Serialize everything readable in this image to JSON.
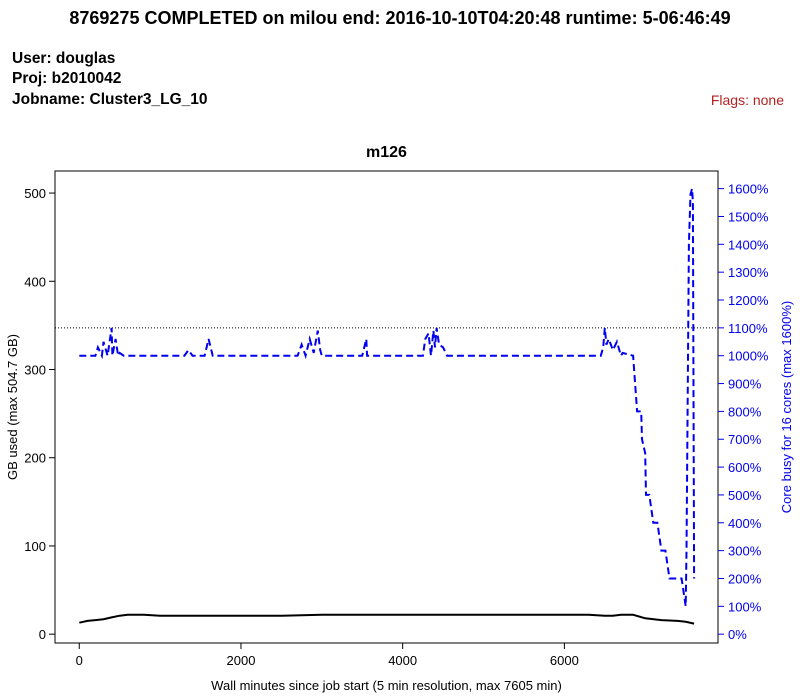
{
  "header": {
    "title": "8769275 COMPLETED on milou  end: 2016-10-10T04:20:48  runtime: 5-06:46:49",
    "user": "User: douglas",
    "proj": "Proj: b2010042",
    "jobname": "Jobname: Cluster3_LG_10",
    "flags": "Flags: none"
  },
  "colors": {
    "memory": "#000000",
    "cpu": "#0000ee",
    "flags": "#b22222"
  },
  "chart_data": {
    "type": "line",
    "title": "m126",
    "xlabel": "Wall minutes since job start (5 min resolution, max 7605 min)",
    "ylabel": "GB used (max 504.7 GB)",
    "ylabel_right": "Core busy for 16 cores (max 1600%)",
    "xlim": [
      -300,
      7900
    ],
    "ylim": [
      -10,
      525
    ],
    "ylim_right": [
      -31.7,
      1663.3
    ],
    "x_ticks": [
      0,
      2000,
      4000,
      6000
    ],
    "x_tick_labels": [
      "0",
      "2000",
      "4000",
      "6000"
    ],
    "y_ticks": [
      0,
      100,
      200,
      300,
      400,
      500
    ],
    "y_tick_labels": [
      "0",
      "100",
      "200",
      "300",
      "400",
      "500"
    ],
    "y_right_ticks": [
      0,
      100,
      200,
      300,
      400,
      500,
      600,
      700,
      800,
      900,
      1000,
      1100,
      1200,
      1300,
      1400,
      1500,
      1600
    ],
    "y_right_tick_labels": [
      "0%",
      "100%",
      "200%",
      "300%",
      "400%",
      "500%",
      "600%",
      "700%",
      "800%",
      "900%",
      "1000%",
      "1100%",
      "1200%",
      "1300%",
      "1400%",
      "1500%",
      "1600%"
    ],
    "reference_line": {
      "axis": "right",
      "value": 1100,
      "style": "dotted"
    },
    "grid": false,
    "series": [
      {
        "axis": "left",
        "style": "solid",
        "x": [
          0,
          50,
          100,
          200,
          300,
          400,
          500,
          600,
          700,
          800,
          1000,
          1500,
          2000,
          2500,
          3000,
          3500,
          4000,
          4500,
          5000,
          5500,
          6000,
          6300,
          6500,
          6600,
          6700,
          6850,
          7000,
          7200,
          7400,
          7500,
          7605
        ],
        "y": [
          13,
          14,
          15,
          16,
          17,
          19,
          21,
          22,
          22,
          22,
          21,
          21,
          21,
          21,
          22,
          22,
          22,
          22,
          22,
          22,
          22,
          22,
          21,
          21,
          22,
          22,
          18,
          16,
          15,
          14,
          12
        ]
      },
      {
        "axis": "right",
        "style": "dashed",
        "x": [
          0,
          200,
          230,
          280,
          300,
          350,
          400,
          410,
          450,
          480,
          500,
          550,
          1300,
          1350,
          1400,
          1550,
          1600,
          1650,
          1700,
          2700,
          2750,
          2800,
          2850,
          2900,
          2950,
          2980,
          3000,
          3100,
          3500,
          3550,
          3560,
          4250,
          4280,
          4320,
          4350,
          4380,
          4400,
          4420,
          4450,
          4500,
          4550,
          6450,
          6480,
          6500,
          6520,
          6550,
          6600,
          6650,
          6700,
          6720,
          6850,
          6900,
          6950,
          6960,
          7000,
          7010,
          7050,
          7100,
          7150,
          7200,
          7250,
          7300,
          7350,
          7450,
          7500,
          7510,
          7540,
          7560,
          7580,
          7590,
          7605
        ],
        "y": [
          1000,
          1000,
          1030,
          1000,
          1050,
          1000,
          1100,
          1000,
          1060,
          1000,
          1010,
          1000,
          1000,
          1020,
          1000,
          1000,
          1060,
          1000,
          1000,
          1000,
          1040,
          1000,
          1060,
          1010,
          1090,
          1020,
          1000,
          1000,
          1000,
          1060,
          1000,
          1000,
          1060,
          1080,
          1000,
          1090,
          1030,
          1100,
          1040,
          1030,
          1000,
          1000,
          1030,
          1100,
          1040,
          1060,
          1020,
          1050,
          1000,
          1010,
          1000,
          800,
          800,
          700,
          650,
          500,
          500,
          400,
          400,
          300,
          300,
          200,
          200,
          200,
          100,
          300,
          1400,
          1580,
          1600,
          1550,
          200
        ]
      }
    ]
  }
}
